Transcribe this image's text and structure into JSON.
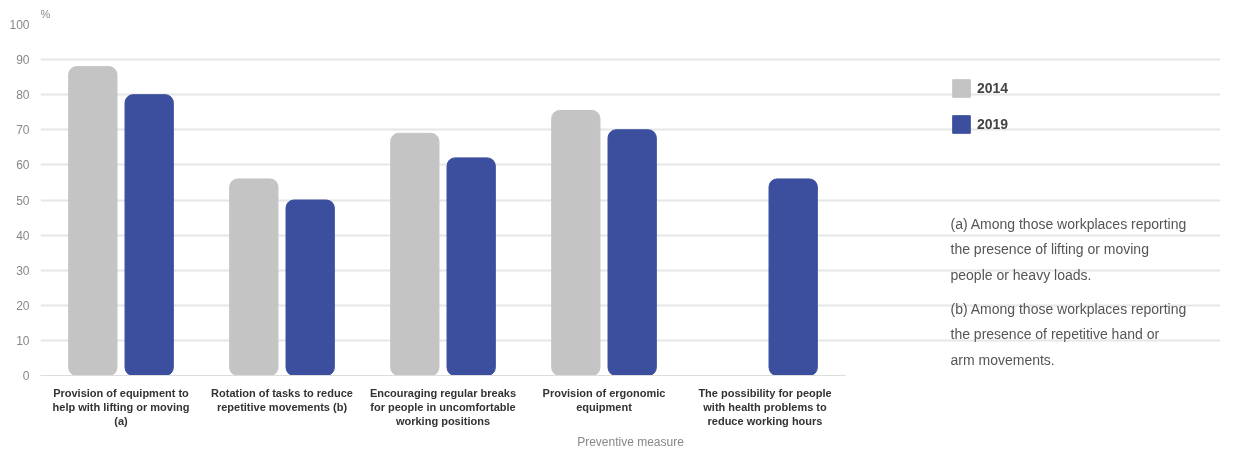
{
  "chart_data": {
    "type": "bar",
    "ylabel": "%",
    "xlabel": "Preventive measure",
    "categories": [
      "Provision of equipment to help with lifting or moving (a)",
      "Rotation of tasks to reduce repetitive movements (b)",
      "Encouraging regular breaks for people in uncomfortable working positions",
      "Provision of ergonomic equipment",
      "The possibility for people with health problems to reduce working hours"
    ],
    "series": [
      {
        "name": "2014",
        "color": "#c4c4c4",
        "values": [
          88,
          56,
          69,
          75.5,
          null
        ]
      },
      {
        "name": "2019",
        "color": "#3b4f9e",
        "values": [
          80,
          50,
          62,
          70,
          56
        ]
      }
    ],
    "ylim": [
      0,
      100
    ],
    "yticks": [
      0,
      10,
      20,
      30,
      40,
      50,
      60,
      70,
      80,
      90,
      100
    ],
    "grid": "y",
    "legend": "top right",
    "annotations": [
      "(a) Among those workplaces reporting the presence of lifting or moving people or heavy loads.",
      "(b) Among those workplaces reporting the presence of repetitive hand or arm movements."
    ]
  }
}
